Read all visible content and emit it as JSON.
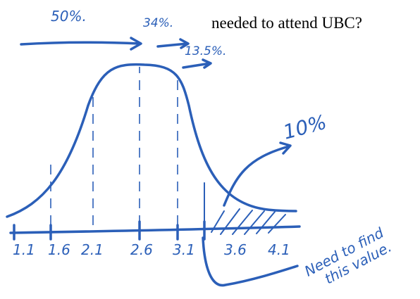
{
  "question": "needed to attend UBC?",
  "annotations": {
    "left_percent": "50%.",
    "middle_percent": "34%.",
    "right_percent": "13.5%.",
    "tail_percent": "10%"
  },
  "axis_labels": [
    "1.1",
    "1.6",
    "2.1",
    "2.6",
    "3.1",
    "3.6",
    "4.1"
  ],
  "note": [
    "Need to find",
    "this value."
  ]
}
